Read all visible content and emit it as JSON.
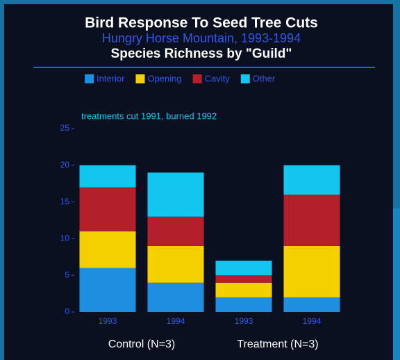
{
  "chart_data": {
    "type": "bar",
    "stacked": true,
    "title": "Bird Response To Seed Tree Cuts",
    "subtitle": "Hungry Horse Mountain, 1993-1994",
    "heading": "Species Richness by \"Guild\"",
    "annotation": "treatments cut 1991, burned 1992",
    "categories": [
      "1993",
      "1994",
      "1993",
      "1994"
    ],
    "groups": [
      "Control (N=3)",
      "Treatment (N=3)"
    ],
    "series": [
      {
        "name": "Interior",
        "color": "#1e8fe0",
        "values": [
          6,
          4,
          2,
          2
        ]
      },
      {
        "name": "Opening",
        "color": "#f5d000",
        "values": [
          5,
          5,
          2,
          7
        ]
      },
      {
        "name": "Cavity",
        "color": "#b3202c",
        "values": [
          6,
          4,
          1,
          7
        ]
      },
      {
        "name": "Other",
        "color": "#12c6f0",
        "values": [
          3,
          6,
          2,
          4
        ]
      }
    ],
    "ylim": [
      0,
      25
    ],
    "yticks": [
      0,
      5,
      10,
      15,
      20,
      25
    ],
    "grid": false
  }
}
